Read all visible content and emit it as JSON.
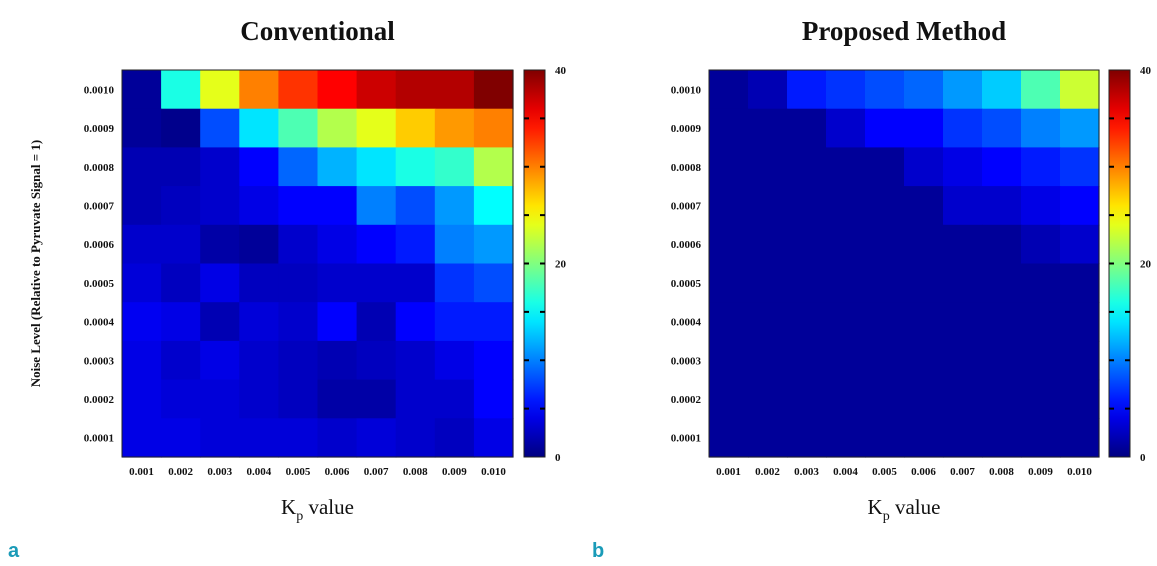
{
  "chart_data": [
    {
      "type": "heatmap",
      "title": "Conventional",
      "panel_label": "a",
      "xlabel_main": "K",
      "xlabel_sub": "p",
      "xlabel_rest": "value",
      "ylabel": "Noise Level (Relative to Pyruvate Signal = 1)",
      "x_categories": [
        "0.001",
        "0.002",
        "0.003",
        "0.004",
        "0.005",
        "0.006",
        "0.007",
        "0.008",
        "0.009",
        "0.010"
      ],
      "y_categories": [
        "0.0010",
        "0.0009",
        "0.0008",
        "0.0007",
        "0.0006",
        "0.0005",
        "0.0004",
        "0.0003",
        "0.0002",
        "0.0001"
      ],
      "colorbar": {
        "min": 0,
        "max": 40,
        "ticks": [
          "40",
          "20",
          "0"
        ],
        "colormap": "jet"
      },
      "values": [
        [
          1,
          16,
          24,
          30,
          33,
          35,
          37,
          38,
          38,
          40
        ],
        [
          1,
          0.5,
          8,
          14,
          18,
          22,
          24,
          27,
          29,
          30
        ],
        [
          2,
          2,
          3,
          5,
          9,
          12,
          14,
          16,
          17,
          22
        ],
        [
          2,
          2.5,
          3,
          4,
          5,
          5,
          10,
          8,
          11,
          15
        ],
        [
          3,
          3,
          1.5,
          1,
          3,
          4,
          5,
          6,
          10,
          11
        ],
        [
          3.5,
          2.5,
          4,
          2.5,
          2.5,
          3,
          3,
          3,
          7,
          8
        ],
        [
          4.5,
          4,
          2,
          3.5,
          3,
          5,
          2,
          5,
          6,
          6
        ],
        [
          4,
          3,
          4,
          3,
          2.5,
          2,
          2.5,
          3,
          4,
          5
        ],
        [
          4,
          3.5,
          3.5,
          3,
          2.5,
          1.5,
          1.5,
          3,
          3,
          5
        ],
        [
          4,
          4,
          3.5,
          3.5,
          3.5,
          3,
          3.5,
          3,
          2.5,
          4
        ]
      ]
    },
    {
      "type": "heatmap",
      "title": "Proposed Method",
      "panel_label": "b",
      "xlabel_main": "K",
      "xlabel_sub": "p",
      "xlabel_rest": "value",
      "ylabel": "",
      "x_categories": [
        "0.001",
        "0.002",
        "0.003",
        "0.004",
        "0.005",
        "0.006",
        "0.007",
        "0.008",
        "0.009",
        "0.010"
      ],
      "y_categories": [
        "0.0010",
        "0.0009",
        "0.0008",
        "0.0007",
        "0.0006",
        "0.0005",
        "0.0004",
        "0.0003",
        "0.0002",
        "0.0001"
      ],
      "colorbar": {
        "min": 0,
        "max": 40,
        "ticks": [
          "40",
          "20",
          "0"
        ],
        "colormap": "jet"
      },
      "values": [
        [
          1,
          2,
          6,
          7,
          8,
          9,
          11,
          13,
          18,
          23
        ],
        [
          1,
          1,
          1,
          3,
          5,
          5,
          7,
          8,
          10,
          11
        ],
        [
          1,
          1,
          1,
          1,
          1,
          3,
          4,
          5,
          6,
          7
        ],
        [
          1,
          1,
          1,
          1,
          1,
          1,
          3,
          3,
          4,
          5
        ],
        [
          1,
          1,
          1,
          1,
          1,
          1,
          1,
          1,
          2,
          3
        ],
        [
          1,
          1,
          1,
          1,
          1,
          1,
          1,
          1,
          1,
          1
        ],
        [
          1,
          1,
          1,
          1,
          1,
          1,
          1,
          1,
          1,
          1
        ],
        [
          1,
          1,
          1,
          1,
          1,
          1,
          1,
          1,
          1,
          1
        ],
        [
          1,
          1,
          1,
          1,
          1,
          1,
          1,
          1,
          1,
          1
        ],
        [
          1,
          1,
          1,
          1,
          1,
          1,
          1,
          1,
          1,
          1
        ]
      ]
    }
  ]
}
